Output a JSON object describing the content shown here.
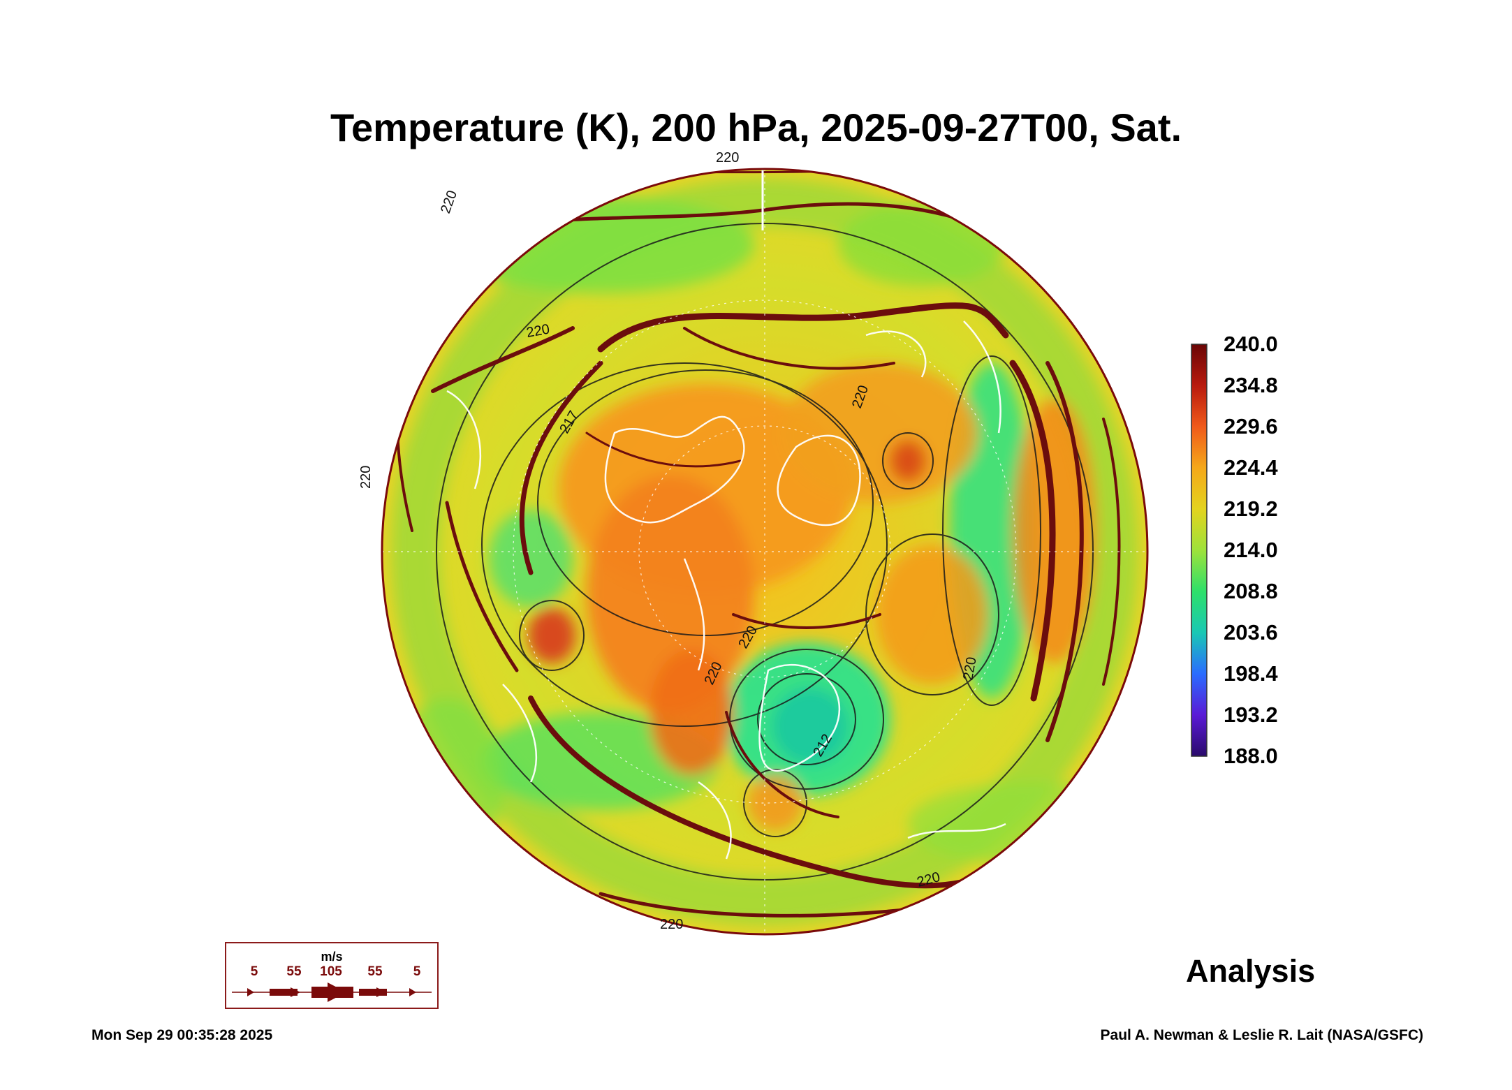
{
  "title": "Temperature (K), 200 hPa, 2025-09-27T00, Sat.",
  "colorbar": {
    "labels": [
      "240.0",
      "234.8",
      "229.6",
      "224.4",
      "219.2",
      "214.0",
      "208.8",
      "203.6",
      "198.4",
      "193.2",
      "188.0"
    ],
    "min": 188.0,
    "max": 240.0,
    "colors": [
      "#2a0a6b",
      "#5a1ad6",
      "#2a5cff",
      "#1fa7e8",
      "#19d47d",
      "#5fe04a",
      "#b3e23a",
      "#e3d31e",
      "#f5a81a",
      "#f06a1a",
      "#c82a10",
      "#7a0a0a"
    ]
  },
  "contour_labels": [
    "220",
    "220",
    "220",
    "220",
    "220",
    "220",
    "220",
    "220",
    "217",
    "212",
    "220",
    "220"
  ],
  "wind_legend": {
    "unit": "m/s",
    "speeds": [
      "5",
      "55",
      "105",
      "55",
      "5"
    ]
  },
  "status_label": "Analysis",
  "timestamp": "Mon Sep 29 00:35:28 2025",
  "credit": "Paul A. Newman & Leslie R. Lait (NASA/GSFC)",
  "colors": {
    "streamline": "#6b0d0d",
    "coastline": "#ffffff",
    "contour": "#1a1a1a"
  }
}
